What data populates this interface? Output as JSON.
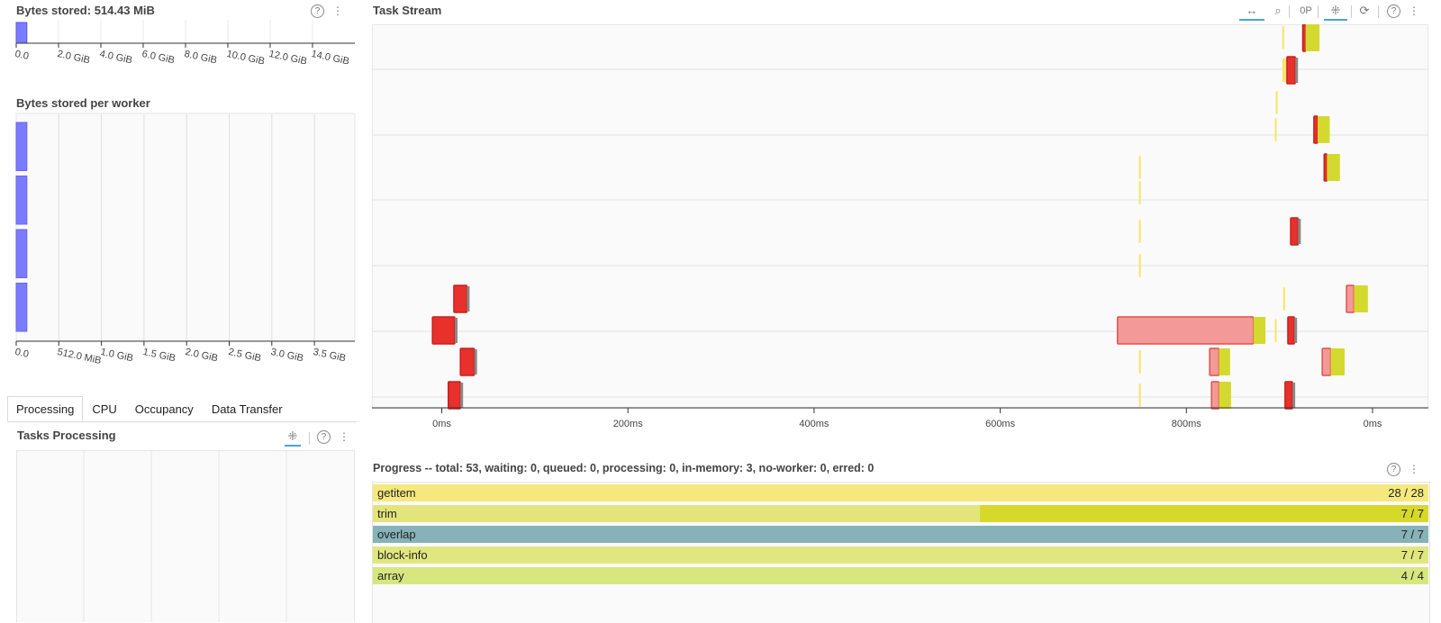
{
  "bytes_stored": {
    "title": "Bytes stored: 514.43 MiB",
    "ticks": [
      "0.0",
      "2.0 GiB",
      "4.0 GiB",
      "6.0 GiB",
      "8.0 GiB",
      "10.0 GiB",
      "12.0 GiB",
      "14.0 GiB"
    ],
    "axis_max_gib": 16,
    "value_gib": 0.502
  },
  "bytes_per_worker": {
    "title": "Bytes stored per worker",
    "ticks": [
      "0.0",
      "512.0 MiB",
      "1.0 GiB",
      "1.5 GiB",
      "2.0 GiB",
      "2.5 GiB",
      "3.0 GiB",
      "3.5 GiB"
    ],
    "axis_max_gib": 4,
    "workers_gib": [
      0.125,
      0.125,
      0.125,
      0.125
    ]
  },
  "tabs": [
    "Processing",
    "CPU",
    "Occupancy",
    "Data Transfer"
  ],
  "tasks_processing": {
    "title": "Tasks Processing"
  },
  "task_stream": {
    "title": "Task Stream",
    "x_ticks": [
      {
        "ms": 0,
        "label": "0ms"
      },
      {
        "ms": 200,
        "label": "200ms"
      },
      {
        "ms": 400,
        "label": "400ms"
      },
      {
        "ms": 600,
        "label": "600ms"
      },
      {
        "ms": 800,
        "label": "800ms"
      },
      {
        "ms": 1000,
        "label": "0ms"
      }
    ],
    "x_range_ms": [
      -75,
      1060
    ],
    "colors": {
      "compute": "#e8302c",
      "transfer": "#f39a98",
      "trim": "#d4d930",
      "getitem": "#f5e66b"
    },
    "tasks": [
      {
        "row": 0,
        "start": 925,
        "end": 928,
        "kind": "compute"
      },
      {
        "row": 0,
        "start": 928,
        "end": 943,
        "kind": "trim"
      },
      {
        "row": 0,
        "start": 903,
        "end": 905,
        "kind": "getitem"
      },
      {
        "row": 1,
        "start": 903,
        "end": 907,
        "kind": "getitem"
      },
      {
        "row": 1,
        "start": 908,
        "end": 917,
        "kind": "compute"
      },
      {
        "row": 2,
        "start": 896,
        "end": 898,
        "kind": "getitem"
      },
      {
        "row": 3,
        "start": 895,
        "end": 897,
        "kind": "getitem"
      },
      {
        "row": 3,
        "start": 937,
        "end": 941,
        "kind": "compute"
      },
      {
        "row": 3,
        "start": 941,
        "end": 954,
        "kind": "trim"
      },
      {
        "row": 4,
        "start": 948,
        "end": 951,
        "kind": "compute"
      },
      {
        "row": 4,
        "start": 951,
        "end": 965,
        "kind": "trim"
      },
      {
        "row": 4,
        "start": 749,
        "end": 751,
        "kind": "getitem"
      },
      {
        "row": 5,
        "start": 749,
        "end": 751,
        "kind": "getitem"
      },
      {
        "row": 6,
        "start": 749,
        "end": 751,
        "kind": "getitem"
      },
      {
        "row": 6,
        "start": 912,
        "end": 920,
        "kind": "compute"
      },
      {
        "row": 7,
        "start": 749,
        "end": 751,
        "kind": "getitem"
      },
      {
        "row": 8,
        "start": 13,
        "end": 27,
        "kind": "compute"
      },
      {
        "row": 8,
        "start": 904,
        "end": 906,
        "kind": "getitem"
      },
      {
        "row": 8,
        "start": 972,
        "end": 980,
        "kind": "transfer"
      },
      {
        "row": 8,
        "start": 980,
        "end": 995,
        "kind": "trim"
      },
      {
        "row": 9,
        "start": -10,
        "end": 14,
        "kind": "compute"
      },
      {
        "row": 9,
        "start": 726,
        "end": 872,
        "kind": "transfer"
      },
      {
        "row": 9,
        "start": 872,
        "end": 885,
        "kind": "trim"
      },
      {
        "row": 9,
        "start": 895,
        "end": 897,
        "kind": "getitem"
      },
      {
        "row": 9,
        "start": 909,
        "end": 916,
        "kind": "compute"
      },
      {
        "row": 10,
        "start": 20,
        "end": 35,
        "kind": "compute"
      },
      {
        "row": 10,
        "start": 749,
        "end": 751,
        "kind": "getitem"
      },
      {
        "row": 10,
        "start": 825,
        "end": 835,
        "kind": "transfer"
      },
      {
        "row": 10,
        "start": 835,
        "end": 847,
        "kind": "trim"
      },
      {
        "row": 10,
        "start": 946,
        "end": 955,
        "kind": "transfer"
      },
      {
        "row": 10,
        "start": 955,
        "end": 970,
        "kind": "trim"
      },
      {
        "row": 11,
        "start": 7,
        "end": 20,
        "kind": "compute"
      },
      {
        "row": 11,
        "start": 749,
        "end": 751,
        "kind": "getitem"
      },
      {
        "row": 11,
        "start": 827,
        "end": 835,
        "kind": "transfer"
      },
      {
        "row": 11,
        "start": 835,
        "end": 848,
        "kind": "trim"
      },
      {
        "row": 11,
        "start": 906,
        "end": 914,
        "kind": "compute"
      }
    ]
  },
  "progress": {
    "title": "Progress -- total: 53, waiting: 0, queued: 0, processing: 0, in-memory: 3, no-worker: 0, erred: 0",
    "rows": [
      {
        "name": "getitem",
        "count": "28 / 28",
        "color": "#f5e97e",
        "dark": null,
        "dark_fraction": 0
      },
      {
        "name": "trim",
        "count": "7 / 7",
        "color": "#e3e57c",
        "dark": "#d6d92a",
        "dark_fraction": 0.425
      },
      {
        "name": "overlap",
        "count": "7 / 7",
        "color": "#86b2b8",
        "dark": null,
        "dark_fraction": 0
      },
      {
        "name": "block-info",
        "count": "7 / 7",
        "color": "#e1e77f",
        "dark": null,
        "dark_fraction": 0
      },
      {
        "name": "array",
        "count": "4 / 4",
        "color": "#d6e77f",
        "dark": null,
        "dark_fraction": 0
      }
    ]
  }
}
